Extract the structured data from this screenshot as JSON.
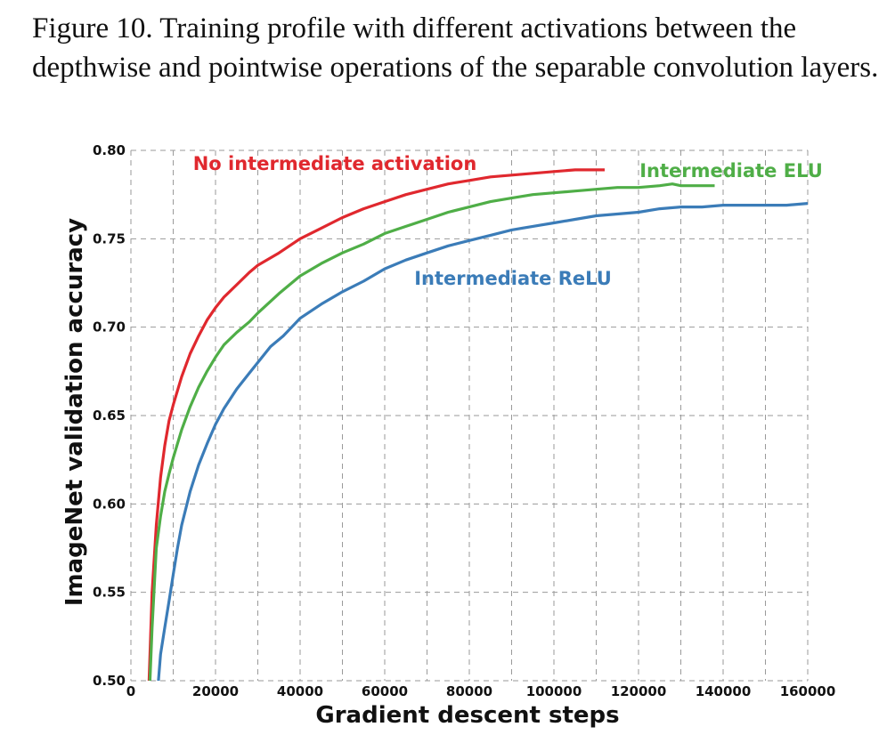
{
  "caption": "Figure 10. Training profile with different activations between the depthwise and pointwise operations of the separable convolution layers.",
  "chart_data": {
    "type": "line",
    "xlabel": "Gradient descent steps",
    "ylabel": "ImageNet validation accuracy",
    "xlim": [
      0,
      160000
    ],
    "ylim": [
      0.5,
      0.8
    ],
    "xticks": [
      0,
      20000,
      40000,
      60000,
      80000,
      100000,
      120000,
      140000,
      160000
    ],
    "xtick_labels": [
      "0",
      "20000",
      "40000",
      "60000",
      "80000",
      "100000",
      "120000",
      "140000",
      "160000"
    ],
    "yticks": [
      0.5,
      0.55,
      0.6,
      0.65,
      0.7,
      0.75,
      0.8
    ],
    "ytick_labels": [
      "0.50",
      "0.55",
      "0.60",
      "0.65",
      "0.70",
      "0.75",
      "0.80"
    ],
    "grid": true,
    "series": [
      {
        "name": "No intermediate activation",
        "color": "#e0282e",
        "x": [
          4300,
          5000,
          6000,
          7000,
          8000,
          9000,
          10000,
          12000,
          14000,
          16000,
          18000,
          20000,
          22000,
          25000,
          28000,
          30000,
          35000,
          40000,
          45000,
          50000,
          55000,
          60000,
          65000,
          70000,
          75000,
          80000,
          85000,
          90000,
          95000,
          100000,
          105000,
          110000,
          112000
        ],
        "y": [
          0.5,
          0.55,
          0.588,
          0.615,
          0.633,
          0.647,
          0.656,
          0.672,
          0.685,
          0.695,
          0.704,
          0.711,
          0.717,
          0.724,
          0.731,
          0.735,
          0.742,
          0.75,
          0.756,
          0.762,
          0.767,
          0.771,
          0.775,
          0.778,
          0.781,
          0.783,
          0.785,
          0.786,
          0.787,
          0.788,
          0.789,
          0.789,
          0.789
        ]
      },
      {
        "name": "Intermediate ELU",
        "color": "#4fae47",
        "x": [
          4500,
          5000,
          6000,
          7000,
          8000,
          9000,
          10000,
          12000,
          14000,
          16000,
          18000,
          20000,
          22000,
          25000,
          28000,
          30000,
          35000,
          40000,
          45000,
          50000,
          55000,
          60000,
          65000,
          70000,
          75000,
          80000,
          85000,
          90000,
          95000,
          100000,
          105000,
          110000,
          115000,
          120000,
          125000,
          128000,
          130000,
          135000,
          138000
        ],
        "y": [
          0.5,
          0.53,
          0.575,
          0.593,
          0.607,
          0.617,
          0.626,
          0.642,
          0.655,
          0.666,
          0.675,
          0.683,
          0.69,
          0.697,
          0.703,
          0.708,
          0.719,
          0.729,
          0.736,
          0.742,
          0.747,
          0.753,
          0.757,
          0.761,
          0.765,
          0.768,
          0.771,
          0.773,
          0.775,
          0.776,
          0.777,
          0.778,
          0.779,
          0.779,
          0.78,
          0.781,
          0.78,
          0.78,
          0.78
        ]
      },
      {
        "name": "Intermediate ReLU",
        "color": "#3b7cb8",
        "x": [
          6500,
          7000,
          8000,
          9000,
          10000,
          11000,
          12000,
          14000,
          16000,
          18000,
          20000,
          22000,
          25000,
          28000,
          30000,
          33000,
          36000,
          38000,
          40000,
          45000,
          50000,
          55000,
          60000,
          65000,
          70000,
          75000,
          80000,
          85000,
          90000,
          95000,
          100000,
          105000,
          110000,
          115000,
          120000,
          125000,
          130000,
          135000,
          140000,
          145000,
          150000,
          155000,
          160000
        ],
        "y": [
          0.5,
          0.515,
          0.53,
          0.545,
          0.56,
          0.575,
          0.588,
          0.607,
          0.622,
          0.634,
          0.645,
          0.654,
          0.665,
          0.674,
          0.68,
          0.689,
          0.695,
          0.7,
          0.705,
          0.713,
          0.72,
          0.726,
          0.733,
          0.738,
          0.742,
          0.746,
          0.749,
          0.752,
          0.755,
          0.757,
          0.759,
          0.761,
          0.763,
          0.764,
          0.765,
          0.767,
          0.768,
          0.768,
          0.769,
          0.769,
          0.769,
          0.769,
          0.77
        ]
      }
    ]
  }
}
